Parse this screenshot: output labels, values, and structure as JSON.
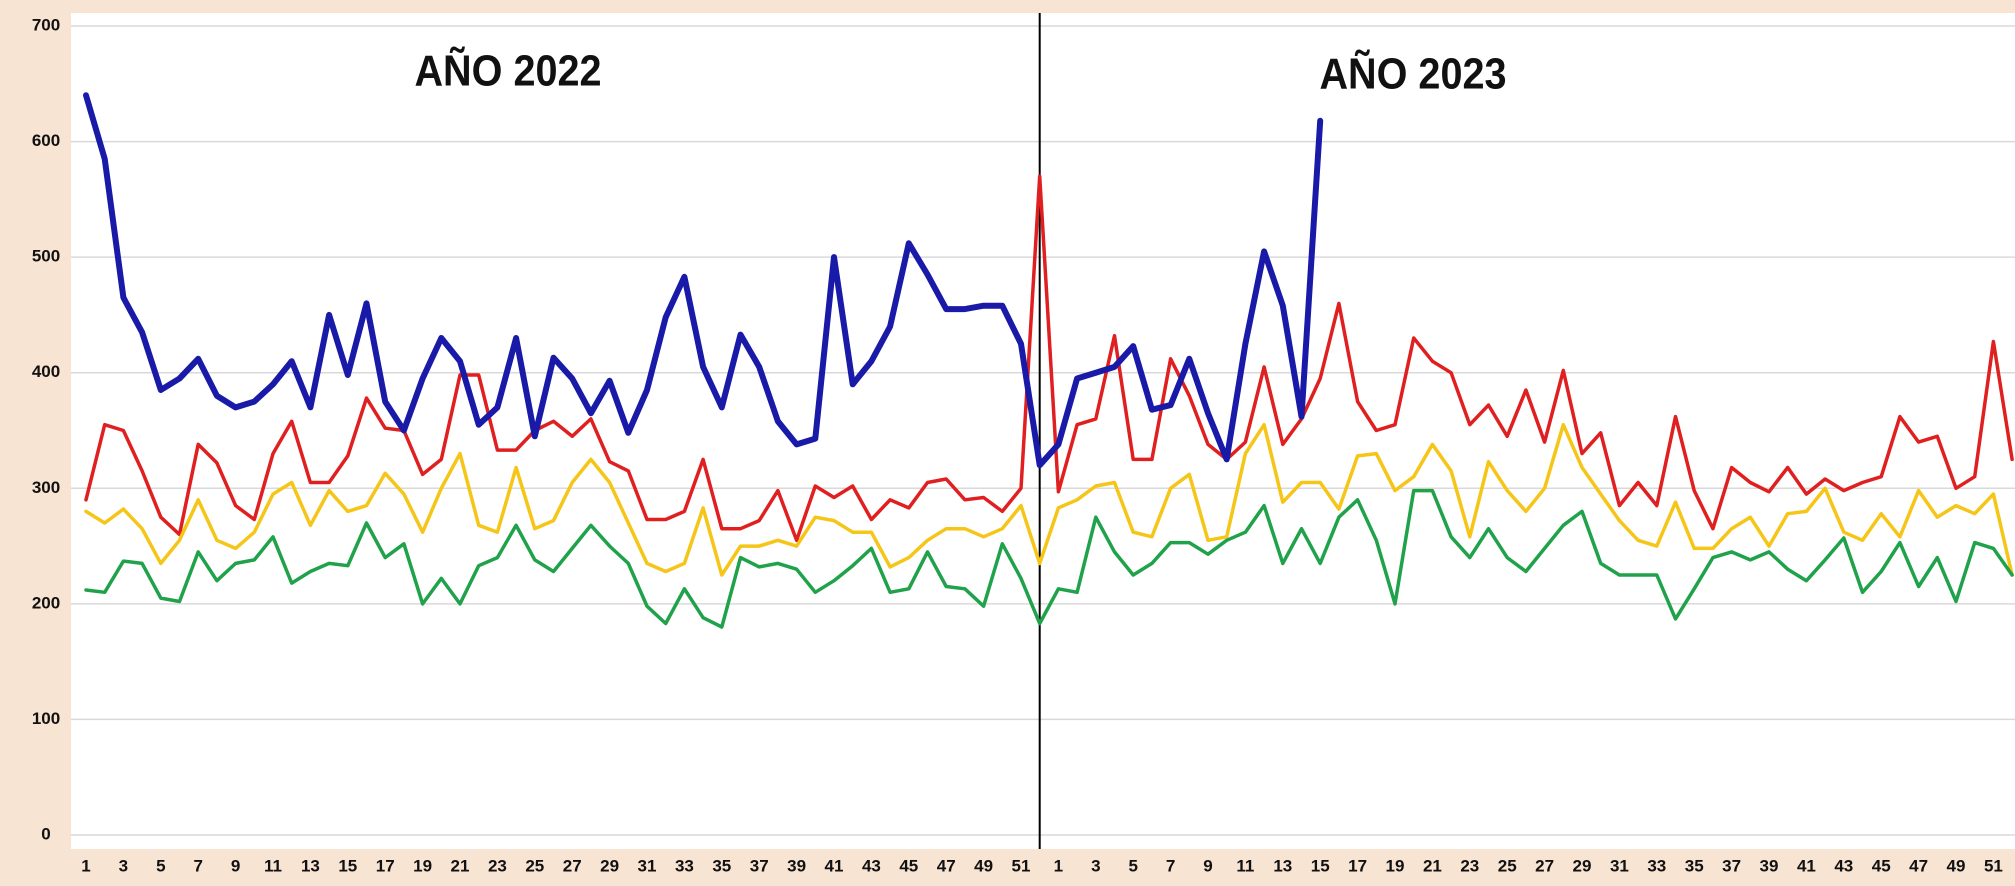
{
  "chart_data": {
    "type": "line",
    "annotations": [
      "AÑO 2022",
      "AÑO 2023"
    ],
    "categories": [
      "1",
      null,
      "3",
      null,
      "5",
      null,
      "7",
      null,
      "9",
      null,
      "11",
      null,
      "13",
      null,
      "15",
      null,
      "17",
      null,
      "19",
      null,
      "21",
      null,
      "23",
      null,
      "25",
      null,
      "27",
      null,
      "29",
      null,
      "31",
      null,
      "33",
      null,
      "35",
      null,
      "37",
      null,
      "39",
      null,
      "41",
      null,
      "43",
      null,
      "45",
      null,
      "47",
      null,
      "49",
      null,
      "51",
      null,
      "1",
      null,
      "3",
      null,
      "5",
      null,
      "7",
      null,
      "9",
      null,
      "11",
      null,
      "13",
      null,
      "15",
      null,
      "17",
      null,
      "19",
      null,
      "21",
      null,
      "23",
      null,
      "25",
      null,
      "27",
      null,
      "29",
      null,
      "31",
      null,
      "33",
      null,
      "35",
      null,
      "37",
      null,
      "39",
      null,
      "41",
      null,
      "43",
      null,
      "45",
      null,
      "47",
      null,
      "49",
      null,
      "51",
      null
    ],
    "series": [
      {
        "color": "#e02020",
        "values": [
          290,
          355,
          350,
          315,
          275,
          260,
          338,
          322,
          285,
          273,
          330,
          358,
          305,
          305,
          328,
          378,
          352,
          350,
          312,
          325,
          398,
          398,
          333,
          333,
          350,
          358,
          345,
          360,
          323,
          315,
          273,
          273,
          280,
          325,
          265,
          265,
          272,
          298,
          255,
          302,
          292,
          302,
          273,
          290,
          283,
          305,
          308,
          290,
          292,
          280,
          300,
          570,
          297,
          355,
          360,
          432,
          325,
          325,
          412,
          380,
          338,
          325,
          340,
          405,
          338,
          360,
          395,
          460,
          375,
          350,
          355,
          430,
          410,
          400,
          355,
          372,
          345,
          385,
          340,
          402,
          330,
          348,
          285,
          305,
          285,
          362,
          298,
          265,
          318,
          305,
          297,
          318,
          295,
          308,
          298,
          305,
          310,
          362,
          340,
          345,
          300,
          310,
          427,
          325
        ]
      },
      {
        "color": "#f5c518",
        "values": [
          280,
          270,
          282,
          265,
          235,
          255,
          290,
          255,
          248,
          262,
          295,
          305,
          268,
          298,
          280,
          285,
          313,
          295,
          262,
          300,
          330,
          268,
          262,
          318,
          265,
          272,
          305,
          325,
          305,
          270,
          235,
          228,
          235,
          283,
          225,
          250,
          250,
          255,
          250,
          275,
          272,
          262,
          262,
          232,
          240,
          255,
          265,
          265,
          258,
          265,
          285,
          235,
          283,
          290,
          302,
          305,
          262,
          258,
          300,
          312,
          255,
          258,
          330,
          355,
          288,
          305,
          305,
          282,
          328,
          330,
          298,
          310,
          338,
          315,
          258,
          323,
          298,
          280,
          300,
          355,
          318,
          295,
          272,
          255,
          250,
          288,
          248,
          248,
          265,
          275,
          250,
          278,
          280,
          300,
          262,
          255,
          278,
          258,
          298,
          275,
          285,
          278,
          295,
          225
        ]
      },
      {
        "color": "#1fa24a",
        "values": [
          212,
          210,
          237,
          235,
          205,
          202,
          245,
          220,
          235,
          238,
          258,
          218,
          228,
          235,
          233,
          270,
          240,
          252,
          200,
          222,
          200,
          233,
          240,
          268,
          238,
          228,
          248,
          268,
          250,
          235,
          198,
          183,
          213,
          188,
          180,
          240,
          232,
          235,
          230,
          210,
          220,
          233,
          248,
          210,
          213,
          245,
          215,
          213,
          198,
          252,
          222,
          183,
          213,
          210,
          275,
          245,
          225,
          235,
          253,
          253,
          243,
          255,
          262,
          285,
          235,
          265,
          235,
          275,
          290,
          255,
          200,
          298,
          298,
          258,
          240,
          265,
          240,
          228,
          248,
          268,
          280,
          235,
          225,
          225,
          225,
          187,
          213,
          240,
          245,
          238,
          245,
          230,
          220,
          238,
          257,
          210,
          228,
          253,
          215,
          240,
          202,
          253,
          248,
          225
        ]
      },
      {
        "color": "#1a1aa8",
        "width": 6,
        "values": [
          640,
          585,
          465,
          435,
          385,
          395,
          412,
          380,
          370,
          375,
          390,
          410,
          370,
          450,
          398,
          460,
          375,
          350,
          395,
          430,
          410,
          355,
          370,
          430,
          345,
          413,
          395,
          365,
          393,
          348,
          385,
          448,
          483,
          405,
          370,
          433,
          405,
          358,
          338,
          343,
          500,
          390,
          410,
          440,
          512,
          485,
          455,
          455,
          458,
          458,
          425,
          320,
          338,
          395,
          400,
          405,
          423,
          368,
          372,
          412,
          365,
          325,
          425,
          505,
          458,
          362,
          618,
          null,
          null,
          null,
          null,
          null,
          null,
          null,
          null,
          null,
          null,
          null,
          null,
          null,
          null,
          null,
          null,
          null,
          null,
          null,
          null,
          null,
          null,
          null,
          null,
          null,
          null,
          null,
          null,
          null,
          null,
          null,
          null,
          null,
          null,
          null,
          null,
          null
        ]
      }
    ],
    "ylim": [
      0,
      700
    ],
    "yticks": [
      0,
      100,
      200,
      300,
      400,
      500,
      600,
      700
    ],
    "grid": true
  }
}
